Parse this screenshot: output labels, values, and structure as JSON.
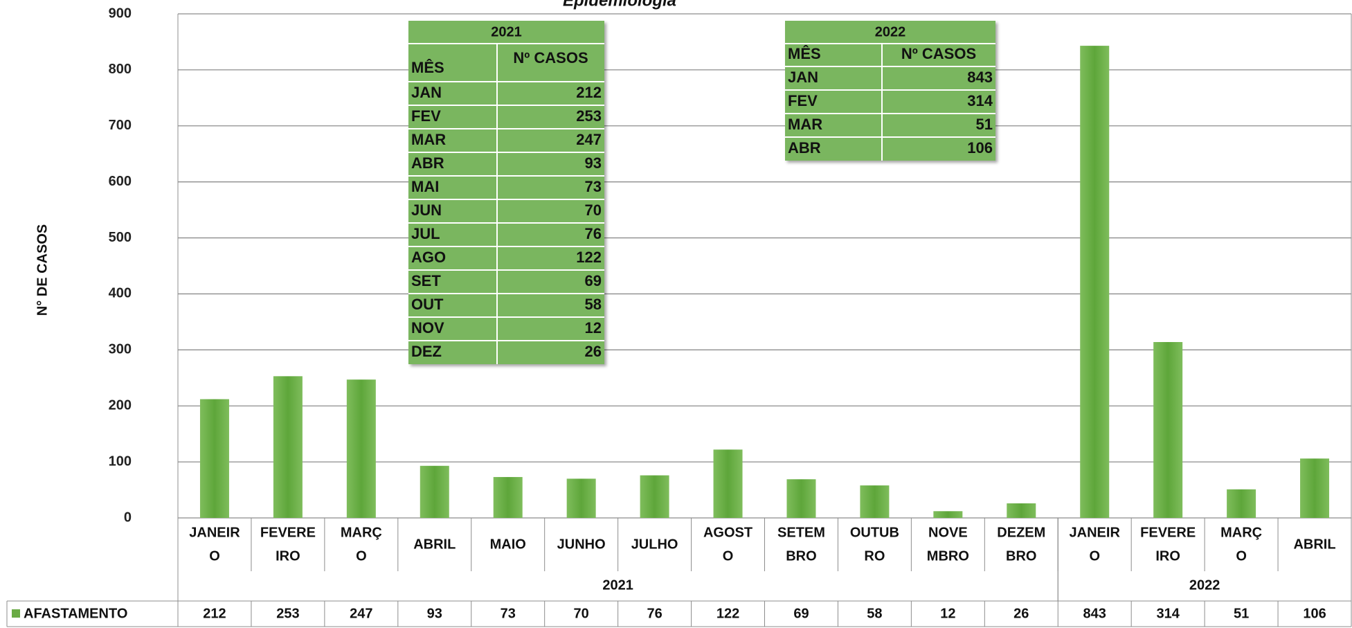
{
  "chart_data": {
    "type": "bar",
    "title": "Epidemiologia",
    "y_label": "N° DE CASOS",
    "categories": [
      [
        "JANEIR",
        "O"
      ],
      [
        "FEVERE",
        "IRO"
      ],
      [
        "MARÇ",
        "O"
      ],
      [
        "ABRIL"
      ],
      [
        "MAIO"
      ],
      [
        "JUNHO"
      ],
      [
        "JULHO"
      ],
      [
        "AGOST",
        "O"
      ],
      [
        "SETEM",
        "BRO"
      ],
      [
        "OUTUB",
        "RO"
      ],
      [
        "NOVE",
        "MBRO"
      ],
      [
        "DEZEM",
        "BRO"
      ],
      [
        "JANEIR",
        "O"
      ],
      [
        "FEVERE",
        "IRO"
      ],
      [
        "MARÇ",
        "O"
      ],
      [
        "ABRIL"
      ]
    ],
    "groups": [
      {
        "label": "2021",
        "count": 12
      },
      {
        "label": "2022",
        "count": 4
      }
    ],
    "series": [
      {
        "name": "AFASTAMENTO",
        "color": "#6aab45",
        "values": [
          212,
          253,
          247,
          93,
          73,
          70,
          76,
          122,
          69,
          58,
          12,
          26,
          843,
          314,
          51,
          106
        ]
      }
    ],
    "ylim": [
      0,
      900
    ],
    "yticks": [
      0,
      100,
      200,
      300,
      400,
      500,
      600,
      700,
      800,
      900
    ],
    "grid": true
  },
  "tables": [
    {
      "title": "2021",
      "header": [
        "MÊS",
        "Nº CASOS"
      ],
      "rows": [
        [
          "JAN",
          "212"
        ],
        [
          "FEV",
          "253"
        ],
        [
          "MAR",
          "247"
        ],
        [
          "ABR",
          "93"
        ],
        [
          "MAI",
          "73"
        ],
        [
          "JUN",
          "70"
        ],
        [
          "JUL",
          "76"
        ],
        [
          "AGO",
          "122"
        ],
        [
          "SET",
          "69"
        ],
        [
          "OUT",
          "58"
        ],
        [
          "NOV",
          "12"
        ],
        [
          "DEZ",
          "26"
        ]
      ]
    },
    {
      "title": "2022",
      "header": [
        "MÊS",
        "Nº CASOS"
      ],
      "rows": [
        [
          "JAN",
          "843"
        ],
        [
          "FEV",
          "314"
        ],
        [
          "MAR",
          "51"
        ],
        [
          "ABR",
          "106"
        ]
      ]
    }
  ]
}
